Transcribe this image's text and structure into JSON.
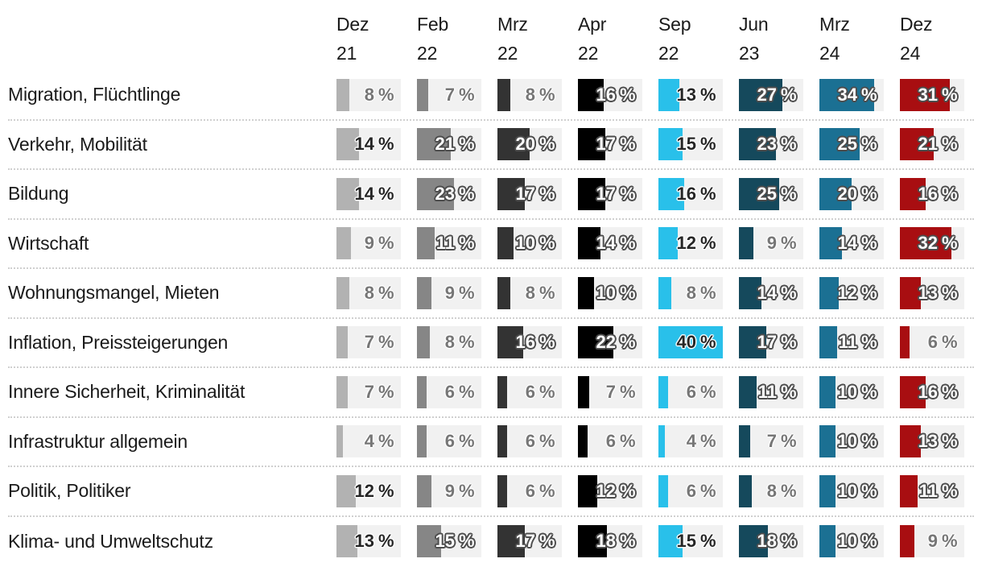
{
  "palette": {
    "track": "#f1f1f1",
    "separator": "#d0d0d0",
    "label_text": "#1a1a1a",
    "muted_value_text": "#767676",
    "onbar_light_text": "#262626",
    "onbar_dark_outline": "#4d4d4d"
  },
  "chart_data": {
    "type": "bar",
    "orientation": "horizontal",
    "unit": "%",
    "value_axis_max": 40,
    "onbar_text_threshold": 10,
    "value_label_format": "{value} %",
    "columns": [
      {
        "month": "Dez",
        "year": "21",
        "color": "#b2b2b2",
        "contrast": "light"
      },
      {
        "month": "Feb",
        "year": "22",
        "color": "#868686",
        "contrast": "dark"
      },
      {
        "month": "Mrz",
        "year": "22",
        "color": "#333333",
        "contrast": "dark"
      },
      {
        "month": "Apr",
        "year": "22",
        "color": "#000000",
        "contrast": "dark"
      },
      {
        "month": "Sep",
        "year": "22",
        "color": "#29c0ea",
        "contrast": "light"
      },
      {
        "month": "Jun",
        "year": "23",
        "color": "#15495c",
        "contrast": "dark"
      },
      {
        "month": "Mrz",
        "year": "24",
        "color": "#1b7093",
        "contrast": "dark"
      },
      {
        "month": "Dez",
        "year": "24",
        "color": "#a80e11",
        "contrast": "dark"
      }
    ],
    "rows": [
      {
        "label": "Migration, Flüchtlinge",
        "values": [
          8,
          7,
          8,
          16,
          13,
          27,
          34,
          31
        ]
      },
      {
        "label": "Verkehr, Mobilität",
        "values": [
          14,
          21,
          20,
          17,
          15,
          23,
          25,
          21
        ]
      },
      {
        "label": "Bildung",
        "values": [
          14,
          23,
          17,
          17,
          16,
          25,
          20,
          16
        ]
      },
      {
        "label": "Wirtschaft",
        "values": [
          9,
          11,
          10,
          14,
          12,
          9,
          14,
          32
        ]
      },
      {
        "label": "Wohnungsmangel, Mieten",
        "values": [
          8,
          9,
          8,
          10,
          8,
          14,
          12,
          13
        ]
      },
      {
        "label": "Inflation, Preissteigerungen",
        "values": [
          7,
          8,
          16,
          22,
          40,
          17,
          11,
          6
        ]
      },
      {
        "label": "Innere Sicherheit, Kriminalität",
        "values": [
          7,
          6,
          6,
          7,
          6,
          11,
          10,
          16
        ]
      },
      {
        "label": "Infrastruktur allgemein",
        "values": [
          4,
          6,
          6,
          6,
          4,
          7,
          10,
          13
        ]
      },
      {
        "label": "Politik, Politiker",
        "values": [
          12,
          9,
          6,
          12,
          6,
          8,
          10,
          11
        ]
      },
      {
        "label": "Klima- und Umweltschutz",
        "values": [
          13,
          15,
          17,
          18,
          15,
          18,
          10,
          9
        ]
      }
    ]
  }
}
